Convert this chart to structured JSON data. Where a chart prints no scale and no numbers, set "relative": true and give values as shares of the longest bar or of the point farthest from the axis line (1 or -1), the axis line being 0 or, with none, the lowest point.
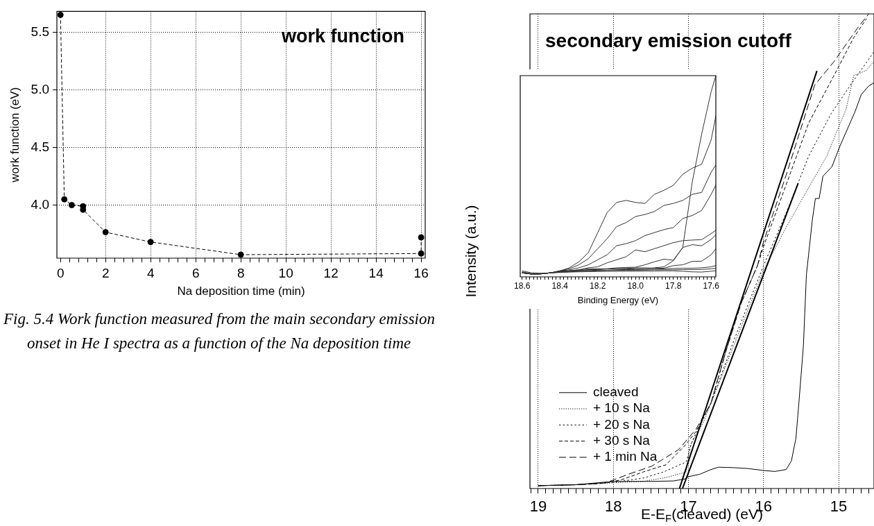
{
  "chart_data": [
    {
      "type": "line",
      "title": "work function",
      "xlabel": "Na deposition time (min)",
      "ylabel": "work function (eV)",
      "annotations": [
        "Fig. 5.4 Work function measured from the main secondary emission onset in He I spectra as a function of the Na deposition time"
      ],
      "x": [
        0,
        0.17,
        0.5,
        1,
        1,
        2,
        4,
        8,
        16,
        16
      ],
      "series": [
        {
          "color": "#000000",
          "values": [
            5.65,
            4.05,
            4.0,
            3.99,
            3.96,
            3.765,
            3.68,
            3.57,
            3.58,
            3.72
          ]
        }
      ],
      "xlim": [
        -0.16,
        16.18
      ],
      "ylim": [
        3.54,
        5.68
      ],
      "xticks": [
        0,
        {
          "value": 0.4,
          "label": null
        },
        {
          "value": 0.8,
          "label": null
        },
        {
          "value": 1.2,
          "label": null
        },
        {
          "value": 1.6,
          "label": null
        },
        2,
        {
          "value": 2.4,
          "label": null
        },
        {
          "value": 2.8,
          "label": null
        },
        {
          "value": 3.2,
          "label": null
        },
        {
          "value": 3.6,
          "label": null
        },
        4,
        {
          "value": 4.4,
          "label": null
        },
        {
          "value": 4.8,
          "label": null
        },
        {
          "value": 5.2,
          "label": null
        },
        {
          "value": 5.6,
          "label": null
        },
        6,
        {
          "value": 6.4,
          "label": null
        },
        {
          "value": 6.8,
          "label": null
        },
        {
          "value": 7.2,
          "label": null
        },
        {
          "value": 7.6,
          "label": null
        },
        8,
        {
          "value": 8.4,
          "label": null
        },
        {
          "value": 8.8,
          "label": null
        },
        {
          "value": 9.2,
          "label": null
        },
        {
          "value": 9.6,
          "label": null
        },
        10,
        {
          "value": 10.4,
          "label": null
        },
        {
          "value": 10.8,
          "label": null
        },
        {
          "value": 11.2,
          "label": null
        },
        {
          "value": 11.6,
          "label": null
        },
        12,
        {
          "value": 12.4,
          "label": null
        },
        {
          "value": 12.8,
          "label": null
        },
        {
          "value": 13.2,
          "label": null
        },
        {
          "value": 13.6,
          "label": null
        },
        14,
        {
          "value": 14.4,
          "label": null
        },
        {
          "value": 14.8,
          "label": null
        },
        {
          "value": 15.2,
          "label": null
        },
        {
          "value": 15.6,
          "label": null
        },
        16
      ],
      "yticks": [
        {
          "value": 4,
          "label": "4.0"
        },
        4.5,
        {
          "value": 5,
          "label": "5.0"
        },
        5.5
      ],
      "grid": true,
      "marker": "circle",
      "line_style": "dashed"
    },
    {
      "type": "line",
      "title": "secondary emission cutoff",
      "xlabel": "E-E$_{F}$(cleaved) (eV)",
      "ylabel": "Intensity (a.u.)",
      "relative": true,
      "series": [
        {
          "name": "cleaved",
          "color": "#000000",
          "line_style": "solid",
          "x": [
            19,
            18.5,
            18,
            17.5,
            17.2,
            17.05,
            17.0,
            16.85,
            16.7,
            16.6,
            16.4,
            16.2,
            16.0,
            15.85,
            15.7,
            15.63,
            15.57,
            15.53,
            15.47,
            15.43,
            15.35,
            15.31,
            15.26,
            15.21,
            15.09,
            14.99,
            14.78,
            14.7,
            14.6,
            14.53
          ],
          "values": [
            0.006,
            0.008,
            0.015,
            0.015,
            0.016,
            0.02,
            0.025,
            0.03,
            0.04,
            0.045,
            0.044,
            0.042,
            0.038,
            0.036,
            0.04,
            0.058,
            0.105,
            0.18,
            0.3,
            0.45,
            0.567,
            0.611,
            0.611,
            0.658,
            0.678,
            0.719,
            0.795,
            0.83,
            0.848,
            0.855
          ]
        },
        {
          "name": "+ 10 s Na",
          "color": "#000000",
          "line_style": "dotted",
          "x": [
            19,
            18.5,
            18,
            17.6,
            17.3,
            17.03,
            16.98,
            16.8,
            16.5,
            16.2,
            16.0,
            15.7,
            15.45,
            15.16,
            14.9,
            14.8,
            14.64,
            14.53
          ],
          "values": [
            0.006,
            0.008,
            0.012,
            0.015,
            0.023,
            0.035,
            0.09,
            0.14,
            0.26,
            0.38,
            0.46,
            0.55,
            0.62,
            0.7,
            0.8,
            0.87,
            0.88,
            0.9
          ]
        },
        {
          "name": "+ 20 s Na",
          "color": "#000000",
          "line_style": "dotted",
          "x": [
            19,
            18.5,
            18,
            17.6,
            17.33,
            17.03,
            16.95,
            16.7,
            16.4,
            16.0,
            15.7,
            15.4,
            15.1,
            14.8,
            14.53
          ],
          "values": [
            0.006,
            0.008,
            0.013,
            0.022,
            0.035,
            0.056,
            0.1,
            0.18,
            0.31,
            0.47,
            0.58,
            0.7,
            0.79,
            0.86,
            0.92
          ]
        },
        {
          "name": "+ 30 s Na",
          "color": "#000000",
          "line_style": "dashed",
          "x": [
            19,
            18.5,
            18.2,
            17.9,
            17.6,
            17.3,
            17.05,
            16.9,
            16.7,
            16.5,
            16.3,
            16.08,
            16.0,
            15.7,
            15.4,
            15.03,
            14.8,
            14.63
          ],
          "values": [
            0.006,
            0.008,
            0.01,
            0.018,
            0.035,
            0.05,
            0.09,
            0.12,
            0.18,
            0.29,
            0.39,
            0.47,
            0.51,
            0.64,
            0.77,
            0.88,
            0.95,
            0.99
          ]
        },
        {
          "name": "+ 1 min Na",
          "color": "#000000",
          "line_style": "dashed",
          "x": [
            19,
            18.5,
            18.1,
            17.8,
            17.49,
            17.13,
            16.9,
            16.7,
            16.5,
            16.3,
            16.08,
            16.0,
            15.7,
            15.32,
            15.06,
            14.75,
            14.6
          ],
          "values": [
            0.006,
            0.008,
            0.012,
            0.03,
            0.047,
            0.082,
            0.125,
            0.18,
            0.29,
            0.39,
            0.47,
            0.52,
            0.66,
            0.85,
            0.9,
            0.97,
            1.0
          ]
        },
        {
          "color": "#000000",
          "line_style": "solid",
          "x": [
            17.12,
            15.29
          ],
          "values": [
            0,
            0.88
          ]
        },
        {
          "color": "#000000",
          "line_style": "solid",
          "x": [
            17.08,
            15.54
          ],
          "values": [
            0,
            0.643
          ]
        }
      ],
      "xlim": [
        19.11,
        14.53
      ],
      "xticks": [
        {
          "value": 19.1,
          "label": null
        },
        19,
        {
          "value": 18.9,
          "label": null
        },
        {
          "value": 18.8,
          "label": null
        },
        {
          "value": 18.7,
          "label": null
        },
        {
          "value": 18.6,
          "label": null
        },
        {
          "value": 18.5,
          "label": null
        },
        {
          "value": 18.4,
          "label": null
        },
        {
          "value": 18.3,
          "label": null
        },
        {
          "value": 18.2,
          "label": null
        },
        {
          "value": 18.1,
          "label": null
        },
        18,
        {
          "value": 17.9,
          "label": null
        },
        {
          "value": 17.8,
          "label": null
        },
        {
          "value": 17.7,
          "label": null
        },
        {
          "value": 17.6,
          "label": null
        },
        {
          "value": 17.5,
          "label": null
        },
        {
          "value": 17.4,
          "label": null
        },
        {
          "value": 17.3,
          "label": null
        },
        {
          "value": 17.2,
          "label": null
        },
        {
          "value": 17.1,
          "label": null
        },
        17,
        {
          "value": 16.9,
          "label": null
        },
        {
          "value": 16.8,
          "label": null
        },
        {
          "value": 16.7,
          "label": null
        },
        {
          "value": 16.6,
          "label": null
        },
        {
          "value": 16.5,
          "label": null
        },
        {
          "value": 16.4,
          "label": null
        },
        {
          "value": 16.3,
          "label": null
        },
        {
          "value": 16.2,
          "label": null
        },
        {
          "value": 16.1,
          "label": null
        },
        16,
        {
          "value": 15.9,
          "label": null
        },
        {
          "value": 15.8,
          "label": null
        },
        {
          "value": 15.7,
          "label": null
        },
        {
          "value": 15.6,
          "label": null
        },
        {
          "value": 15.5,
          "label": null
        },
        {
          "value": 15.4,
          "label": null
        },
        {
          "value": 15.3,
          "label": null
        },
        {
          "value": 15.2,
          "label": null
        },
        {
          "value": 15.1,
          "label": null
        },
        15,
        {
          "value": 14.9,
          "label": null
        },
        {
          "value": 14.8,
          "label": null
        },
        {
          "value": 14.7,
          "label": null
        },
        {
          "value": 14.6,
          "label": null
        }
      ],
      "grid": "x",
      "legend": "bottom left"
    },
    {
      "type": "line",
      "xlabel": "Binding Energy (eV)",
      "relative": true,
      "x": [
        18.6,
        18.55,
        18.5,
        18.45,
        18.4,
        18.35,
        18.3,
        18.25,
        18.2,
        18.15,
        18.1,
        18.05,
        18.0,
        17.95,
        17.9,
        17.85,
        17.8,
        17.75,
        17.7,
        17.65,
        17.6,
        17.575
      ],
      "series": [
        {
          "color": "#333333",
          "values": [
            0.02,
            0.015,
            0.015,
            0.02,
            0.025,
            0.03,
            0.035,
            0.04,
            0.04,
            0.04,
            0.04,
            0.04,
            0.04,
            0.04,
            0.045,
            0.05,
            0.08,
            0.146,
            0.47,
            0.71,
            0.92,
            1.0
          ]
        },
        {
          "color": "#333333",
          "values": [
            0.02,
            0.014,
            0.015,
            0.02,
            0.03,
            0.045,
            0.075,
            0.12,
            0.22,
            0.32,
            0.37,
            0.38,
            0.37,
            0.365,
            0.41,
            0.43,
            0.455,
            0.51,
            0.54,
            0.56,
            0.68,
            0.8
          ]
        },
        {
          "color": "#333333",
          "values": [
            0.02,
            0.014,
            0.015,
            0.02,
            0.03,
            0.04,
            0.06,
            0.09,
            0.14,
            0.19,
            0.25,
            0.27,
            0.3,
            0.31,
            0.325,
            0.355,
            0.365,
            0.38,
            0.41,
            0.42,
            0.52,
            0.556
          ]
        },
        {
          "color": "#333333",
          "values": [
            0.02,
            0.014,
            0.015,
            0.02,
            0.03,
            0.035,
            0.045,
            0.06,
            0.085,
            0.11,
            0.155,
            0.165,
            0.18,
            0.205,
            0.22,
            0.235,
            0.245,
            0.29,
            0.305,
            0.33,
            0.41,
            0.456
          ]
        },
        {
          "color": "#333333",
          "values": [
            0.02,
            0.014,
            0.015,
            0.02,
            0.028,
            0.03,
            0.035,
            0.045,
            0.05,
            0.07,
            0.085,
            0.1,
            0.134,
            0.125,
            0.14,
            0.155,
            0.17,
            0.18,
            0.183,
            0.185,
            0.215,
            0.232
          ]
        },
        {
          "color": "#333333",
          "values": [
            0.02,
            0.014,
            0.015,
            0.02,
            0.028,
            0.03,
            0.032,
            0.035,
            0.037,
            0.04,
            0.045,
            0.047,
            0.048,
            0.06,
            0.075,
            0.088,
            0.083,
            0.146,
            0.16,
            0.155,
            0.186,
            0.209
          ]
        },
        {
          "color": "#333333",
          "values": [
            0.02,
            0.014,
            0.015,
            0.02,
            0.025,
            0.03,
            0.032,
            0.035,
            0.037,
            0.04,
            0.04,
            0.042,
            0.045,
            0.045,
            0.043,
            0.043,
            0.056,
            0.06,
            0.077,
            0.078,
            0.11,
            0.14
          ]
        },
        {
          "color": "#333333",
          "values": [
            0.02,
            0.015,
            0.015,
            0.02,
            0.025,
            0.028,
            0.03,
            0.032,
            0.033,
            0.034,
            0.035,
            0.036,
            0.037,
            0.038,
            0.038,
            0.04,
            0.042,
            0.043,
            0.043,
            0.045,
            0.05,
            0.056
          ]
        },
        {
          "color": "#333333",
          "values": [
            0.025,
            0.016,
            0.016,
            0.02,
            0.023,
            0.025,
            0.027,
            0.028,
            0.03,
            0.03,
            0.032,
            0.033,
            0.033,
            0.034,
            0.035,
            0.035,
            0.035,
            0.036,
            0.036,
            0.037,
            0.04,
            0.043
          ]
        },
        {
          "color": "#333333",
          "values": [
            0.03,
            0.02,
            0.018,
            0.02,
            0.022,
            0.024,
            0.025,
            0.026,
            0.027,
            0.028,
            0.028,
            0.028,
            0.028,
            0.029,
            0.029,
            0.03,
            0.03,
            0.028,
            0.025,
            0.024,
            0.028,
            0.031
          ]
        }
      ],
      "xlim": [
        18.61,
        17.575
      ],
      "xticks": [
        18.6,
        {
          "value": 18.58,
          "label": null
        },
        {
          "value": 18.56,
          "label": null
        },
        {
          "value": 18.54,
          "label": null
        },
        {
          "value": 18.52,
          "label": null
        },
        {
          "value": 18.5,
          "label": null
        },
        {
          "value": 18.48,
          "label": null
        },
        {
          "value": 18.46,
          "label": null
        },
        {
          "value": 18.44,
          "label": null
        },
        {
          "value": 18.42,
          "label": null
        },
        18.4,
        {
          "value": 18.38,
          "label": null
        },
        {
          "value": 18.36,
          "label": null
        },
        {
          "value": 18.34,
          "label": null
        },
        {
          "value": 18.32,
          "label": null
        },
        {
          "value": 18.3,
          "label": null
        },
        {
          "value": 18.28,
          "label": null
        },
        {
          "value": 18.26,
          "label": null
        },
        {
          "value": 18.24,
          "label": null
        },
        {
          "value": 18.22,
          "label": null
        },
        18.2,
        {
          "value": 18.18,
          "label": null
        },
        {
          "value": 18.16,
          "label": null
        },
        {
          "value": 18.14,
          "label": null
        },
        {
          "value": 18.12,
          "label": null
        },
        {
          "value": 18.1,
          "label": null
        },
        {
          "value": 18.08,
          "label": null
        },
        {
          "value": 18.06,
          "label": null
        },
        {
          "value": 18.04,
          "label": null
        },
        {
          "value": 18.02,
          "label": null
        },
        {
          "value": 18,
          "label": "18.0"
        },
        {
          "value": 17.98,
          "label": null
        },
        {
          "value": 17.96,
          "label": null
        },
        {
          "value": 17.94,
          "label": null
        },
        {
          "value": 17.92,
          "label": null
        },
        {
          "value": 17.9,
          "label": null
        },
        {
          "value": 17.88,
          "label": null
        },
        {
          "value": 17.86,
          "label": null
        },
        {
          "value": 17.84,
          "label": null
        },
        {
          "value": 17.82,
          "label": null
        },
        17.8,
        {
          "value": 17.78,
          "label": null
        },
        {
          "value": 17.76,
          "label": null
        },
        {
          "value": 17.74,
          "label": null
        },
        {
          "value": 17.72,
          "label": null
        },
        {
          "value": 17.7,
          "label": null
        },
        {
          "value": 17.68,
          "label": null
        },
        {
          "value": 17.66,
          "label": null
        },
        {
          "value": 17.64,
          "label": null
        },
        {
          "value": 17.62,
          "label": null
        },
        17.6,
        {
          "value": 17.58,
          "label": null
        }
      ]
    }
  ]
}
